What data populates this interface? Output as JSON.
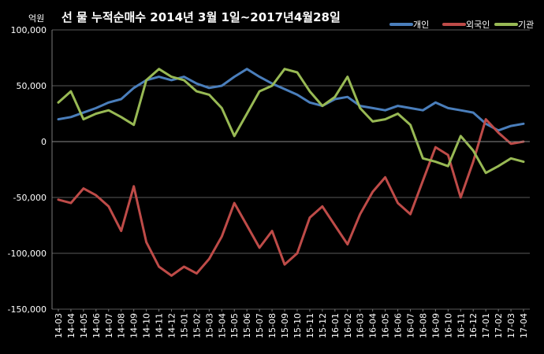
{
  "chart_data": {
    "type": "line",
    "title": "선 물 누적순매수 2014년 3월 1일~2017년4월28일",
    "ylabel": "억원",
    "ylim": [
      -150000,
      100000
    ],
    "yticks": [
      100000,
      50000,
      0,
      -50000,
      -100000,
      -150000
    ],
    "ytick_labels": [
      "100,000",
      "50,000",
      "0",
      "-50,000",
      "-100,000",
      "-150,000"
    ],
    "categories": [
      "14-03",
      "14-04",
      "14-05",
      "14-06",
      "14-07",
      "14-08",
      "14-09",
      "14-10",
      "14-11",
      "14-12",
      "15-01",
      "15-02",
      "15-03",
      "15-04",
      "15-05",
      "15-06",
      "15-07",
      "15-08",
      "15-09",
      "15-10",
      "15-11",
      "15-12",
      "16-01",
      "16-02",
      "16-03",
      "16-04",
      "16-05",
      "16-06",
      "16-07",
      "16-08",
      "16-09",
      "16-10",
      "16-11",
      "16-12",
      "17-01",
      "17-02",
      "17-03",
      "17-04"
    ],
    "grid": true,
    "legend_position": "top-right",
    "series": [
      {
        "name": "개인",
        "color": "#4a7ebb",
        "values": [
          20000,
          22000,
          26000,
          30000,
          35000,
          38000,
          48000,
          55000,
          58000,
          55000,
          58000,
          52000,
          48000,
          50000,
          58000,
          65000,
          58000,
          52000,
          47000,
          42000,
          35000,
          32000,
          38000,
          40000,
          32000,
          30000,
          28000,
          32000,
          30000,
          28000,
          35000,
          30000,
          28000,
          26000,
          16000,
          10000,
          14000,
          16000
        ]
      },
      {
        "name": "외국인",
        "color": "#be4b48",
        "values": [
          -52000,
          -55000,
          -42000,
          -48000,
          -58000,
          -80000,
          -40000,
          -90000,
          -112000,
          -120000,
          -112000,
          -118000,
          -105000,
          -85000,
          -55000,
          -75000,
          -95000,
          -80000,
          -110000,
          -100000,
          -68000,
          -58000,
          -75000,
          -92000,
          -65000,
          -45000,
          -32000,
          -55000,
          -65000,
          -35000,
          -5000,
          -12000,
          -50000,
          -18000,
          20000,
          8000,
          -2000,
          0
        ]
      },
      {
        "name": "기관",
        "color": "#98b954",
        "values": [
          35000,
          45000,
          20000,
          25000,
          28000,
          22000,
          15000,
          55000,
          65000,
          58000,
          55000,
          45000,
          42000,
          30000,
          5000,
          25000,
          45000,
          50000,
          65000,
          62000,
          45000,
          32000,
          40000,
          58000,
          30000,
          18000,
          20000,
          25000,
          15000,
          -15000,
          -18000,
          -22000,
          5000,
          -8000,
          -28000,
          -22000,
          -15000,
          -18000
        ]
      }
    ]
  }
}
